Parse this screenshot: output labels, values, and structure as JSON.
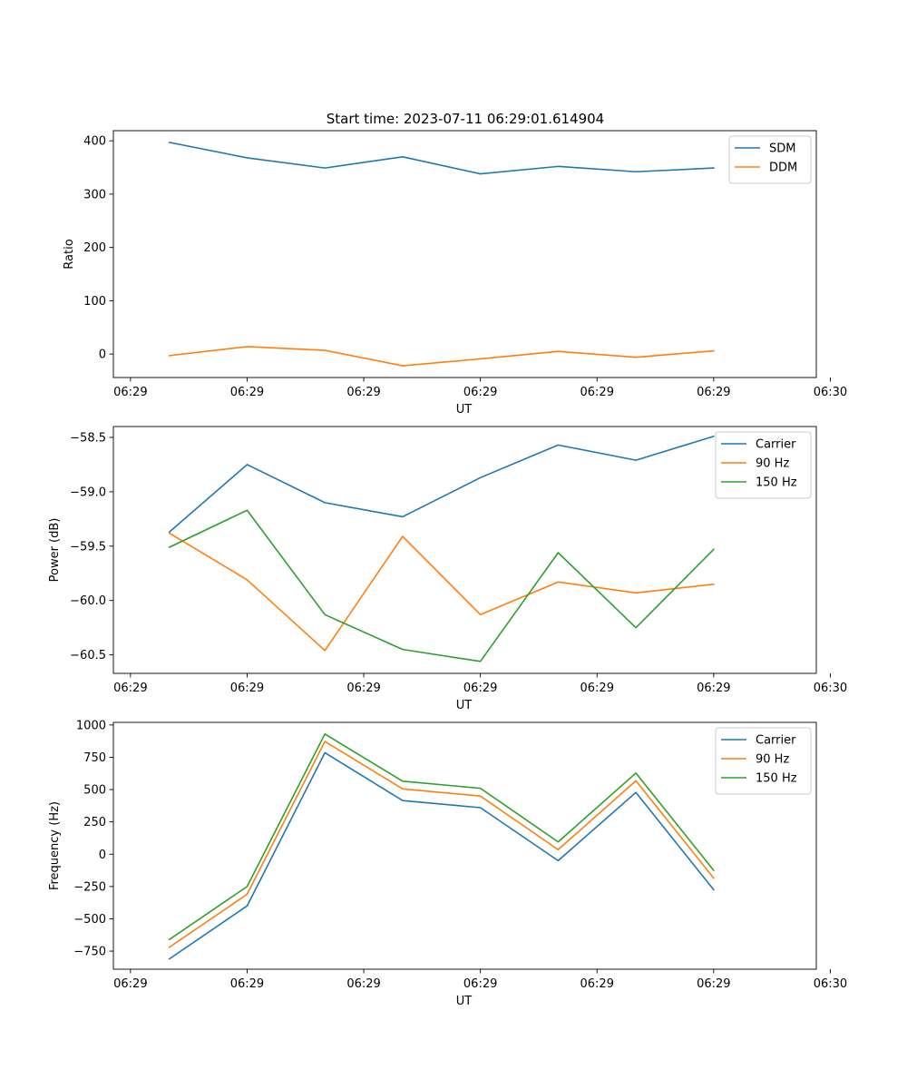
{
  "figure": {
    "title": "Start time: 2023-07-11 06:29:01.614904"
  },
  "chart_data": [
    {
      "type": "line",
      "xlabel": "UT",
      "ylabel": "Ratio",
      "x": [
        1,
        2,
        3,
        4,
        5,
        6,
        7,
        8
      ],
      "xlim": [
        0.28,
        9.32
      ],
      "xticks": [
        0.5,
        2.0,
        3.5,
        5.0,
        6.5,
        8.0,
        9.5
      ],
      "xtick_labels": [
        "06:29",
        "06:29",
        "06:29",
        "06:29",
        "06:29",
        "06:29",
        "06:30"
      ],
      "ylim": [
        -44,
        419
      ],
      "yticks": [
        0,
        100,
        200,
        300,
        400
      ],
      "ytick_labels": [
        "0",
        "100",
        "200",
        "300",
        "400"
      ],
      "series": [
        {
          "name": "SDM",
          "color": "#1f77b4",
          "values": [
            397,
            368,
            349,
            370,
            338,
            352,
            342,
            349
          ]
        },
        {
          "name": "DDM",
          "color": "#ff7f0e",
          "values": [
            -3,
            14,
            7,
            -22,
            -9,
            5,
            -6,
            6
          ]
        }
      ],
      "legend": "top-right"
    },
    {
      "type": "line",
      "xlabel": "UT",
      "ylabel": "Power (dB)",
      "x": [
        1,
        2,
        3,
        4,
        5,
        6,
        7,
        8
      ],
      "xlim": [
        0.28,
        9.32
      ],
      "xticks": [
        0.5,
        2.0,
        3.5,
        5.0,
        6.5,
        8.0,
        9.5
      ],
      "xtick_labels": [
        "06:29",
        "06:29",
        "06:29",
        "06:29",
        "06:29",
        "06:29",
        "06:30"
      ],
      "ylim": [
        -60.67,
        -58.4
      ],
      "yticks": [
        -60.5,
        -60.0,
        -59.5,
        -59.0,
        -58.5
      ],
      "ytick_labels": [
        "−60.5",
        "−60.0",
        "−59.5",
        "−59.0",
        "−58.5"
      ],
      "series": [
        {
          "name": "Carrier",
          "color": "#1f77b4",
          "values": [
            -59.37,
            -58.75,
            -59.1,
            -59.23,
            -58.87,
            -58.57,
            -58.71,
            -58.49
          ]
        },
        {
          "name": "90 Hz",
          "color": "#ff7f0e",
          "values": [
            -59.38,
            -59.81,
            -60.46,
            -59.41,
            -60.13,
            -59.83,
            -59.93,
            -59.85
          ]
        },
        {
          "name": "150 Hz",
          "color": "#2ca02c",
          "values": [
            -59.51,
            -59.17,
            -60.13,
            -60.45,
            -60.56,
            -59.56,
            -60.25,
            -59.53
          ]
        }
      ],
      "legend": "top-right"
    },
    {
      "type": "line",
      "xlabel": "UT",
      "ylabel": "Frequency (Hz)",
      "x": [
        1,
        2,
        3,
        4,
        5,
        6,
        7,
        8
      ],
      "xlim": [
        0.28,
        9.32
      ],
      "xticks": [
        0.5,
        2.0,
        3.5,
        5.0,
        6.5,
        8.0,
        9.5
      ],
      "xtick_labels": [
        "06:29",
        "06:29",
        "06:29",
        "06:29",
        "06:29",
        "06:29",
        "06:30"
      ],
      "ylim": [
        -890,
        1020
      ],
      "yticks": [
        -750,
        -500,
        -250,
        0,
        250,
        500,
        750,
        1000
      ],
      "ytick_labels": [
        "−750",
        "−500",
        "−250",
        "0",
        "250",
        "500",
        "750",
        "1000"
      ],
      "series": [
        {
          "name": "Carrier",
          "color": "#1f77b4",
          "values": [
            -810,
            -400,
            785,
            415,
            360,
            -50,
            478,
            -275
          ]
        },
        {
          "name": "90 Hz",
          "color": "#ff7f0e",
          "values": [
            -720,
            -310,
            872,
            505,
            450,
            35,
            568,
            -185
          ]
        },
        {
          "name": "150 Hz",
          "color": "#2ca02c",
          "values": [
            -660,
            -250,
            930,
            565,
            510,
            95,
            628,
            -125
          ]
        }
      ],
      "legend": "top-right"
    }
  ]
}
